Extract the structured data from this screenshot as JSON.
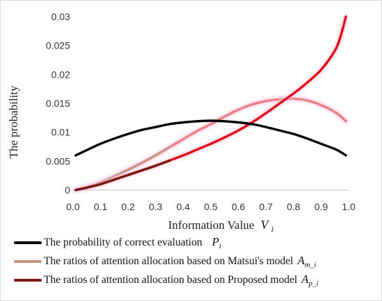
{
  "chart_data": {
    "type": "line",
    "xlabel": "Information Value",
    "xlabel_symbol": "V",
    "xlabel_sub": "i",
    "ylabel": "The probability",
    "xlim": [
      0.0,
      1.0
    ],
    "ylim": [
      0,
      0.03
    ],
    "x_ticks": [
      "0.0",
      "0.1",
      "0.2",
      "0.3",
      "0.4",
      "0.5",
      "0.6",
      "0.7",
      "0.8",
      "0.9",
      "1.0"
    ],
    "y_ticks": [
      "0",
      "0.005",
      "0.01",
      "0.015",
      "0.02",
      "0.025",
      "0.03"
    ],
    "grid": "none",
    "legend_position": "bottom",
    "x": [
      0.01,
      0.05,
      0.1,
      0.15,
      0.2,
      0.25,
      0.3,
      0.35,
      0.4,
      0.45,
      0.5,
      0.55,
      0.6,
      0.65,
      0.7,
      0.75,
      0.8,
      0.85,
      0.9,
      0.95,
      0.97,
      0.99
    ],
    "series": [
      {
        "name": "The probability of correct evaluation",
        "symbol": "P",
        "sub": "i",
        "color": "#000000",
        "values": [
          0.006,
          0.0069,
          0.008,
          0.0089,
          0.0097,
          0.0104,
          0.0109,
          0.0114,
          0.0117,
          0.0119,
          0.012,
          0.0119,
          0.0117,
          0.0114,
          0.0109,
          0.0103,
          0.0097,
          0.0089,
          0.008,
          0.0071,
          0.0066,
          0.006
        ]
      },
      {
        "name": "The ratios of attention allocation based on Matsui's model",
        "symbol": "A",
        "sub": "m_i",
        "color": "#f08080",
        "highlight_color": "#c9957e",
        "values": [
          0.0,
          0.0005,
          0.0013,
          0.0024,
          0.0035,
          0.0047,
          0.006,
          0.0074,
          0.0088,
          0.0102,
          0.0114,
          0.0127,
          0.0139,
          0.0148,
          0.0154,
          0.0157,
          0.0158,
          0.0155,
          0.0147,
          0.0135,
          0.0128,
          0.0119
        ]
      },
      {
        "name": "The ratios of attention allocation based on Proposed model",
        "symbol": "A",
        "sub": "p_i",
        "color": "#e01010",
        "highlight_color": "#7a1a0a",
        "values": [
          0.0,
          0.0004,
          0.001,
          0.0018,
          0.0026,
          0.0034,
          0.0042,
          0.0051,
          0.006,
          0.007,
          0.008,
          0.0091,
          0.0103,
          0.0117,
          0.0133,
          0.015,
          0.0167,
          0.0186,
          0.0208,
          0.0241,
          0.0265,
          0.03
        ]
      }
    ]
  }
}
